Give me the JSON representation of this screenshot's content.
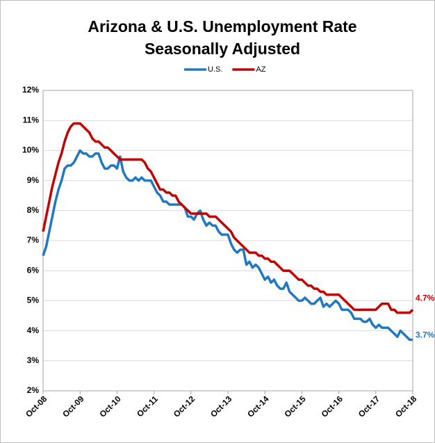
{
  "chart_data": {
    "type": "line",
    "title": "Arizona & U.S. Unemployment Rate",
    "subtitle": "Seasonally Adjusted",
    "categories": [
      "Oct-08",
      null,
      null,
      null,
      null,
      null,
      null,
      null,
      null,
      null,
      null,
      null,
      "Oct-09",
      null,
      null,
      null,
      null,
      null,
      null,
      null,
      null,
      null,
      null,
      null,
      "Oct-10",
      null,
      null,
      null,
      null,
      null,
      null,
      null,
      null,
      null,
      null,
      null,
      "Oct-11",
      null,
      null,
      null,
      null,
      null,
      null,
      null,
      null,
      null,
      null,
      null,
      "Oct-12",
      null,
      null,
      null,
      null,
      null,
      null,
      null,
      null,
      null,
      null,
      null,
      "Oct-13",
      null,
      null,
      null,
      null,
      null,
      null,
      null,
      null,
      null,
      null,
      null,
      "Oct-14",
      null,
      null,
      null,
      null,
      null,
      null,
      null,
      null,
      null,
      null,
      null,
      "Oct-15",
      null,
      null,
      null,
      null,
      null,
      null,
      null,
      null,
      null,
      null,
      null,
      "Oct-16",
      null,
      null,
      null,
      null,
      null,
      null,
      null,
      null,
      null,
      null,
      null,
      "Oct-17",
      null,
      null,
      null,
      null,
      null,
      null,
      null,
      null,
      null,
      null,
      null,
      "Oct-18"
    ],
    "series": [
      {
        "name": "U.S.",
        "color": "#1f78c1",
        "values": [
          6.5,
          6.8,
          7.3,
          7.8,
          8.3,
          8.7,
          9.0,
          9.4,
          9.5,
          9.5,
          9.6,
          9.8,
          10.0,
          9.9,
          9.9,
          9.8,
          9.8,
          9.9,
          9.9,
          9.6,
          9.4,
          9.4,
          9.5,
          9.5,
          9.4,
          9.8,
          9.3,
          9.1,
          9.0,
          9.0,
          9.1,
          9.0,
          9.1,
          9.0,
          9.0,
          9.0,
          8.8,
          8.6,
          8.5,
          8.3,
          8.3,
          8.2,
          8.2,
          8.2,
          8.2,
          8.2,
          8.1,
          7.8,
          7.8,
          7.7,
          7.9,
          8.0,
          7.7,
          7.5,
          7.6,
          7.5,
          7.5,
          7.3,
          7.2,
          7.2,
          7.2,
          6.9,
          6.7,
          6.6,
          6.7,
          6.7,
          6.2,
          6.3,
          6.1,
          6.2,
          6.1,
          5.9,
          5.7,
          5.8,
          5.6,
          5.7,
          5.5,
          5.4,
          5.4,
          5.6,
          5.3,
          5.2,
          5.1,
          5.0,
          5.0,
          5.1,
          5.0,
          4.9,
          4.9,
          5.0,
          5.1,
          4.8,
          4.9,
          4.8,
          4.9,
          5.0,
          4.9,
          4.7,
          4.7,
          4.7,
          4.6,
          4.4,
          4.4,
          4.4,
          4.3,
          4.3,
          4.4,
          4.2,
          4.1,
          4.2,
          4.1,
          4.1,
          4.1,
          4.0,
          3.9,
          3.8,
          4.0,
          3.9,
          3.8,
          3.7,
          3.7
        ],
        "value_labels": [
          null,
          null,
          null,
          null,
          null,
          null,
          null,
          null,
          null,
          null,
          null,
          null,
          null,
          null,
          null,
          null,
          null,
          null,
          null,
          null,
          null,
          null,
          null,
          null,
          null,
          null,
          null,
          null,
          null,
          null,
          null,
          null,
          null,
          null,
          null,
          null,
          null,
          null,
          null,
          null,
          null,
          null,
          null,
          null,
          null,
          null,
          null,
          null,
          null,
          null,
          null,
          null,
          null,
          null,
          null,
          null,
          null,
          null,
          null,
          null,
          null,
          null,
          null,
          null,
          null,
          null,
          null,
          null,
          null,
          null,
          null,
          null,
          null,
          null,
          null,
          null,
          null,
          null,
          null,
          null,
          null,
          null,
          null,
          null,
          null,
          null,
          null,
          null,
          null,
          null,
          null,
          null,
          null,
          null,
          null,
          null,
          null,
          null,
          null,
          null,
          null,
          null,
          null,
          null,
          null,
          null,
          null,
          null,
          null,
          null,
          null,
          null,
          null,
          null,
          null,
          null,
          null,
          null,
          null,
          null,
          "3.7%"
        ]
      },
      {
        "name": "AZ",
        "color": "#c00000",
        "values": [
          7.3,
          7.8,
          8.3,
          8.8,
          9.2,
          9.6,
          9.9,
          10.3,
          10.6,
          10.8,
          10.9,
          10.9,
          10.9,
          10.8,
          10.7,
          10.6,
          10.4,
          10.3,
          10.3,
          10.2,
          10.1,
          10.1,
          10.0,
          9.9,
          9.8,
          9.7,
          9.7,
          9.7,
          9.7,
          9.7,
          9.7,
          9.7,
          9.7,
          9.6,
          9.4,
          9.3,
          9.1,
          8.9,
          8.7,
          8.7,
          8.6,
          8.6,
          8.5,
          8.5,
          8.3,
          8.2,
          8.1,
          8.0,
          7.9,
          7.9,
          7.9,
          7.9,
          7.9,
          7.9,
          7.8,
          7.8,
          7.8,
          7.7,
          7.6,
          7.5,
          7.4,
          7.3,
          7.1,
          7.0,
          6.9,
          6.8,
          6.7,
          6.6,
          6.6,
          6.6,
          6.5,
          6.5,
          6.4,
          6.4,
          6.3,
          6.3,
          6.2,
          6.1,
          6.0,
          6.0,
          6.0,
          5.9,
          5.8,
          5.7,
          5.7,
          5.6,
          5.5,
          5.5,
          5.4,
          5.4,
          5.3,
          5.3,
          5.2,
          5.2,
          5.2,
          5.2,
          5.2,
          5.1,
          5.0,
          4.9,
          4.8,
          4.7,
          4.7,
          4.7,
          4.7,
          4.7,
          4.7,
          4.7,
          4.7,
          4.8,
          4.9,
          4.9,
          4.9,
          4.7,
          4.7,
          4.6,
          4.6,
          4.6,
          4.6,
          4.6,
          4.7
        ],
        "value_labels": [
          null,
          null,
          null,
          null,
          null,
          null,
          null,
          null,
          null,
          null,
          null,
          null,
          null,
          null,
          null,
          null,
          null,
          null,
          null,
          null,
          null,
          null,
          null,
          null,
          null,
          null,
          null,
          null,
          null,
          null,
          null,
          null,
          null,
          null,
          null,
          null,
          null,
          null,
          null,
          null,
          null,
          null,
          null,
          null,
          null,
          null,
          null,
          null,
          null,
          null,
          null,
          null,
          null,
          null,
          null,
          null,
          null,
          null,
          null,
          null,
          null,
          null,
          null,
          null,
          null,
          null,
          null,
          null,
          null,
          null,
          null,
          null,
          null,
          null,
          null,
          null,
          null,
          null,
          null,
          null,
          null,
          null,
          null,
          null,
          null,
          null,
          null,
          null,
          null,
          null,
          null,
          null,
          null,
          null,
          null,
          null,
          null,
          null,
          null,
          null,
          null,
          null,
          null,
          null,
          null,
          null,
          null,
          null,
          null,
          null,
          null,
          null,
          null,
          null,
          null,
          null,
          null,
          null,
          null,
          null,
          "4.7%"
        ]
      }
    ],
    "ylim": [
      2,
      12
    ],
    "yticks": [
      {
        "value": 2,
        "label": "2%"
      },
      {
        "value": 3,
        "label": "3%"
      },
      {
        "value": 4,
        "label": "4%"
      },
      {
        "value": 5,
        "label": "5%"
      },
      {
        "value": 6,
        "label": "6%"
      },
      {
        "value": 7,
        "label": "7%"
      },
      {
        "value": 8,
        "label": "8%"
      },
      {
        "value": 9,
        "label": "9%"
      },
      {
        "value": 10,
        "label": "10%"
      },
      {
        "value": 11,
        "label": "11%"
      },
      {
        "value": 12,
        "label": "12%"
      }
    ],
    "grid": true,
    "legend": "top"
  }
}
